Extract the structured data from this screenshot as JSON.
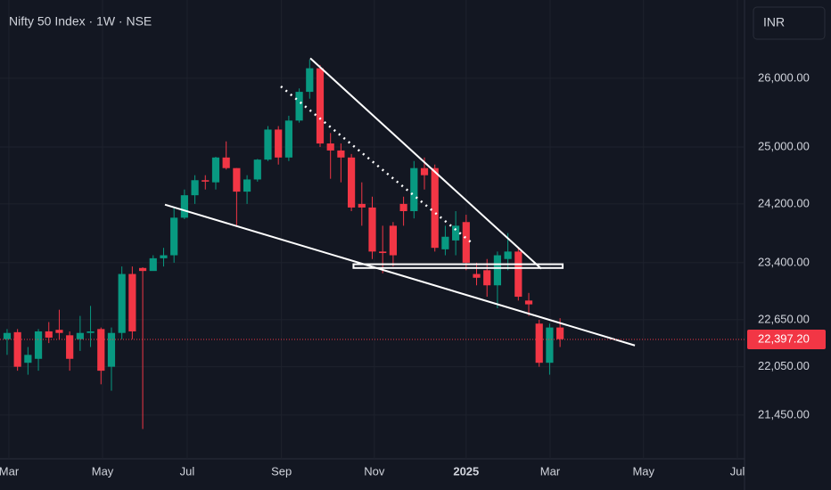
{
  "chart_data": {
    "type": "candlestick",
    "title": "Nifty 50 Index · 1W · NSE",
    "currency": "INR",
    "log_scale": true,
    "grid": true,
    "up_color": "#089981",
    "down_color": "#f23645",
    "categories": [
      null,
      null,
      null,
      null,
      null,
      null,
      null,
      null,
      null,
      null,
      null,
      null,
      null,
      null,
      null,
      null,
      null,
      null,
      null,
      null,
      null,
      null,
      null,
      null,
      null,
      null,
      null,
      null,
      null,
      null,
      null,
      null,
      null,
      null,
      null,
      null,
      null,
      null,
      null,
      null,
      null,
      null,
      null,
      null,
      null,
      null,
      null,
      null,
      null,
      null,
      null,
      null,
      null,
      null
    ],
    "open": [
      22400,
      22490,
      22100,
      22150,
      22500,
      22520,
      22450,
      22400,
      22480,
      22530,
      22050,
      22480,
      23250,
      23330,
      23290,
      23460,
      23500,
      24010,
      24320,
      24530,
      24500,
      24850,
      24700,
      24370,
      24540,
      24820,
      25250,
      24850,
      25380,
      25800,
      26150,
      25050,
      24950,
      24850,
      24200,
      24150,
      23550,
      23900,
      24200,
      24100,
      24700,
      24700,
      23580,
      23700,
      23950,
      23250,
      23300,
      23100,
      23450,
      23550,
      22900,
      22600,
      22100,
      22550
    ],
    "high": [
      22530,
      22530,
      22300,
      22530,
      22620,
      22780,
      22500,
      22700,
      22830,
      22550,
      22550,
      23350,
      23350,
      23340,
      23500,
      23600,
      24150,
      24400,
      24600,
      24600,
      24860,
      25080,
      24700,
      24600,
      24830,
      25300,
      25300,
      25450,
      25850,
      26280,
      26200,
      25200,
      25050,
      24900,
      24500,
      24300,
      23900,
      23950,
      24300,
      24800,
      24850,
      24750,
      23900,
      24100,
      24050,
      23400,
      23450,
      23550,
      23800,
      23600,
      23000,
      22650,
      22600,
      22670
    ],
    "low": [
      22200,
      22000,
      21950,
      22000,
      22350,
      22400,
      22000,
      22250,
      22300,
      21830,
      21750,
      22400,
      22400,
      21280,
      23300,
      23350,
      23400,
      23990,
      24200,
      24400,
      24400,
      24680,
      23900,
      24200,
      24510,
      24800,
      24750,
      24800,
      25350,
      25700,
      25000,
      24550,
      24500,
      24100,
      23900,
      23450,
      23260,
      23350,
      23900,
      24000,
      24400,
      23550,
      23500,
      23500,
      23300,
      23100,
      22950,
      22800,
      23300,
      22900,
      22700,
      22050,
      21950,
      22300
    ],
    "close": [
      22480,
      22050,
      22200,
      22500,
      22420,
      22480,
      22150,
      22480,
      22500,
      22000,
      22480,
      23250,
      22500,
      23290,
      23460,
      23500,
      24010,
      24320,
      24530,
      24510,
      24850,
      24700,
      24370,
      24540,
      24820,
      25250,
      24850,
      25380,
      25800,
      26150,
      25050,
      24950,
      24850,
      24150,
      24150,
      23550,
      23530,
      23500,
      24100,
      24700,
      24600,
      23600,
      23750,
      23900,
      23400,
      23200,
      23100,
      23500,
      23550,
      22950,
      22850,
      22100,
      22550,
      22400
    ],
    "ylim": [
      20920,
      27190
    ],
    "yticks": [
      {
        "value": 21450,
        "label": "21,450.00"
      },
      {
        "value": 22050,
        "label": "22,050.00"
      },
      {
        "value": 22650,
        "label": "22,650.00"
      },
      {
        "value": 23400,
        "label": "23,400.00"
      },
      {
        "value": 24200,
        "label": "24,200.00"
      },
      {
        "value": 25000,
        "label": "25,000.00"
      },
      {
        "value": 26000,
        "label": "26,000.00"
      }
    ],
    "xlim": [
      -0.68,
      70.68
    ],
    "xticks": [
      {
        "value": 0.17,
        "label": "Mar"
      },
      {
        "value": 9.15,
        "label": "May"
      },
      {
        "value": 17.26,
        "label": "Jul"
      },
      {
        "value": 26.3,
        "label": "Sep"
      },
      {
        "value": 35.2,
        "label": "Nov"
      },
      {
        "value": 44.0,
        "label": "2025",
        "bold": true
      },
      {
        "value": 52.05,
        "label": "Mar"
      },
      {
        "value": 61.0,
        "label": "May"
      },
      {
        "value": 70.0,
        "label": "Jul"
      }
    ],
    "last_price": 22397.2,
    "last_price_label": "22,397.20",
    "trend_lines": [
      {
        "x": [
          29.06,
          51.2
        ],
        "y": [
          26300,
          23320
        ],
        "dashed": false
      },
      {
        "x": [
          15.13,
          60.17
        ],
        "y": [
          24190,
          22320
        ],
        "dashed": false
      },
      {
        "x": [
          26.24,
          44.6
        ],
        "y": [
          25880,
          23660
        ],
        "dashed": true
      }
    ],
    "zone": {
      "x": [
        33.2,
        53.25
      ],
      "y": [
        23380,
        23330
      ]
    }
  }
}
